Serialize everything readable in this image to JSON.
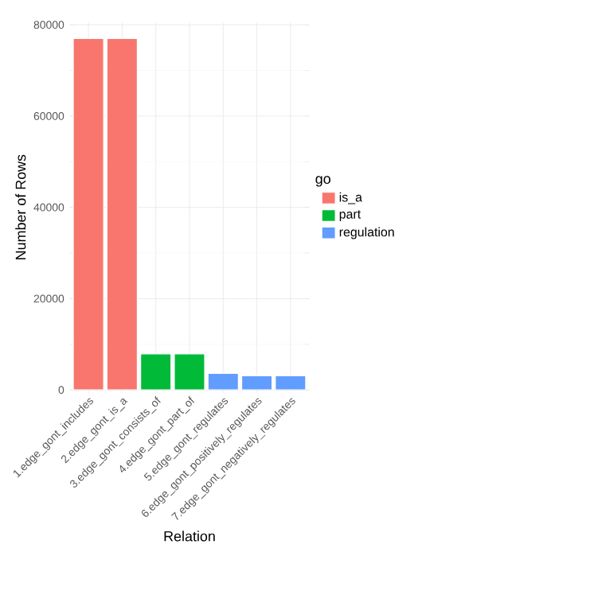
{
  "chart_data": {
    "type": "bar",
    "xlabel": "Relation",
    "ylabel": "Number of Rows",
    "legend_title": "go",
    "categories": [
      "1.edge_gont_includes",
      "2.edge_gont_is_a",
      "3.edge_gont_consists_of",
      "4.edge_gont_part_of",
      "5.edge_gont_regulates",
      "6.edge_gont_positively_regulates",
      "7.edge_gont_negatively_regulates"
    ],
    "series": [
      {
        "name": "is_a",
        "color": "#f8766d",
        "values": [
          77000,
          77000,
          null,
          null,
          null,
          null,
          null
        ]
      },
      {
        "name": "part",
        "color": "#00ba38",
        "values": [
          null,
          null,
          7900,
          7900,
          null,
          null,
          null
        ]
      },
      {
        "name": "regulation",
        "color": "#619cff",
        "values": [
          null,
          null,
          null,
          null,
          3600,
          3100,
          3100
        ]
      }
    ],
    "ylim": [
      0,
      80000
    ],
    "yticks": [
      0,
      20000,
      40000,
      60000,
      80000
    ],
    "grid": true,
    "legend": "right"
  }
}
